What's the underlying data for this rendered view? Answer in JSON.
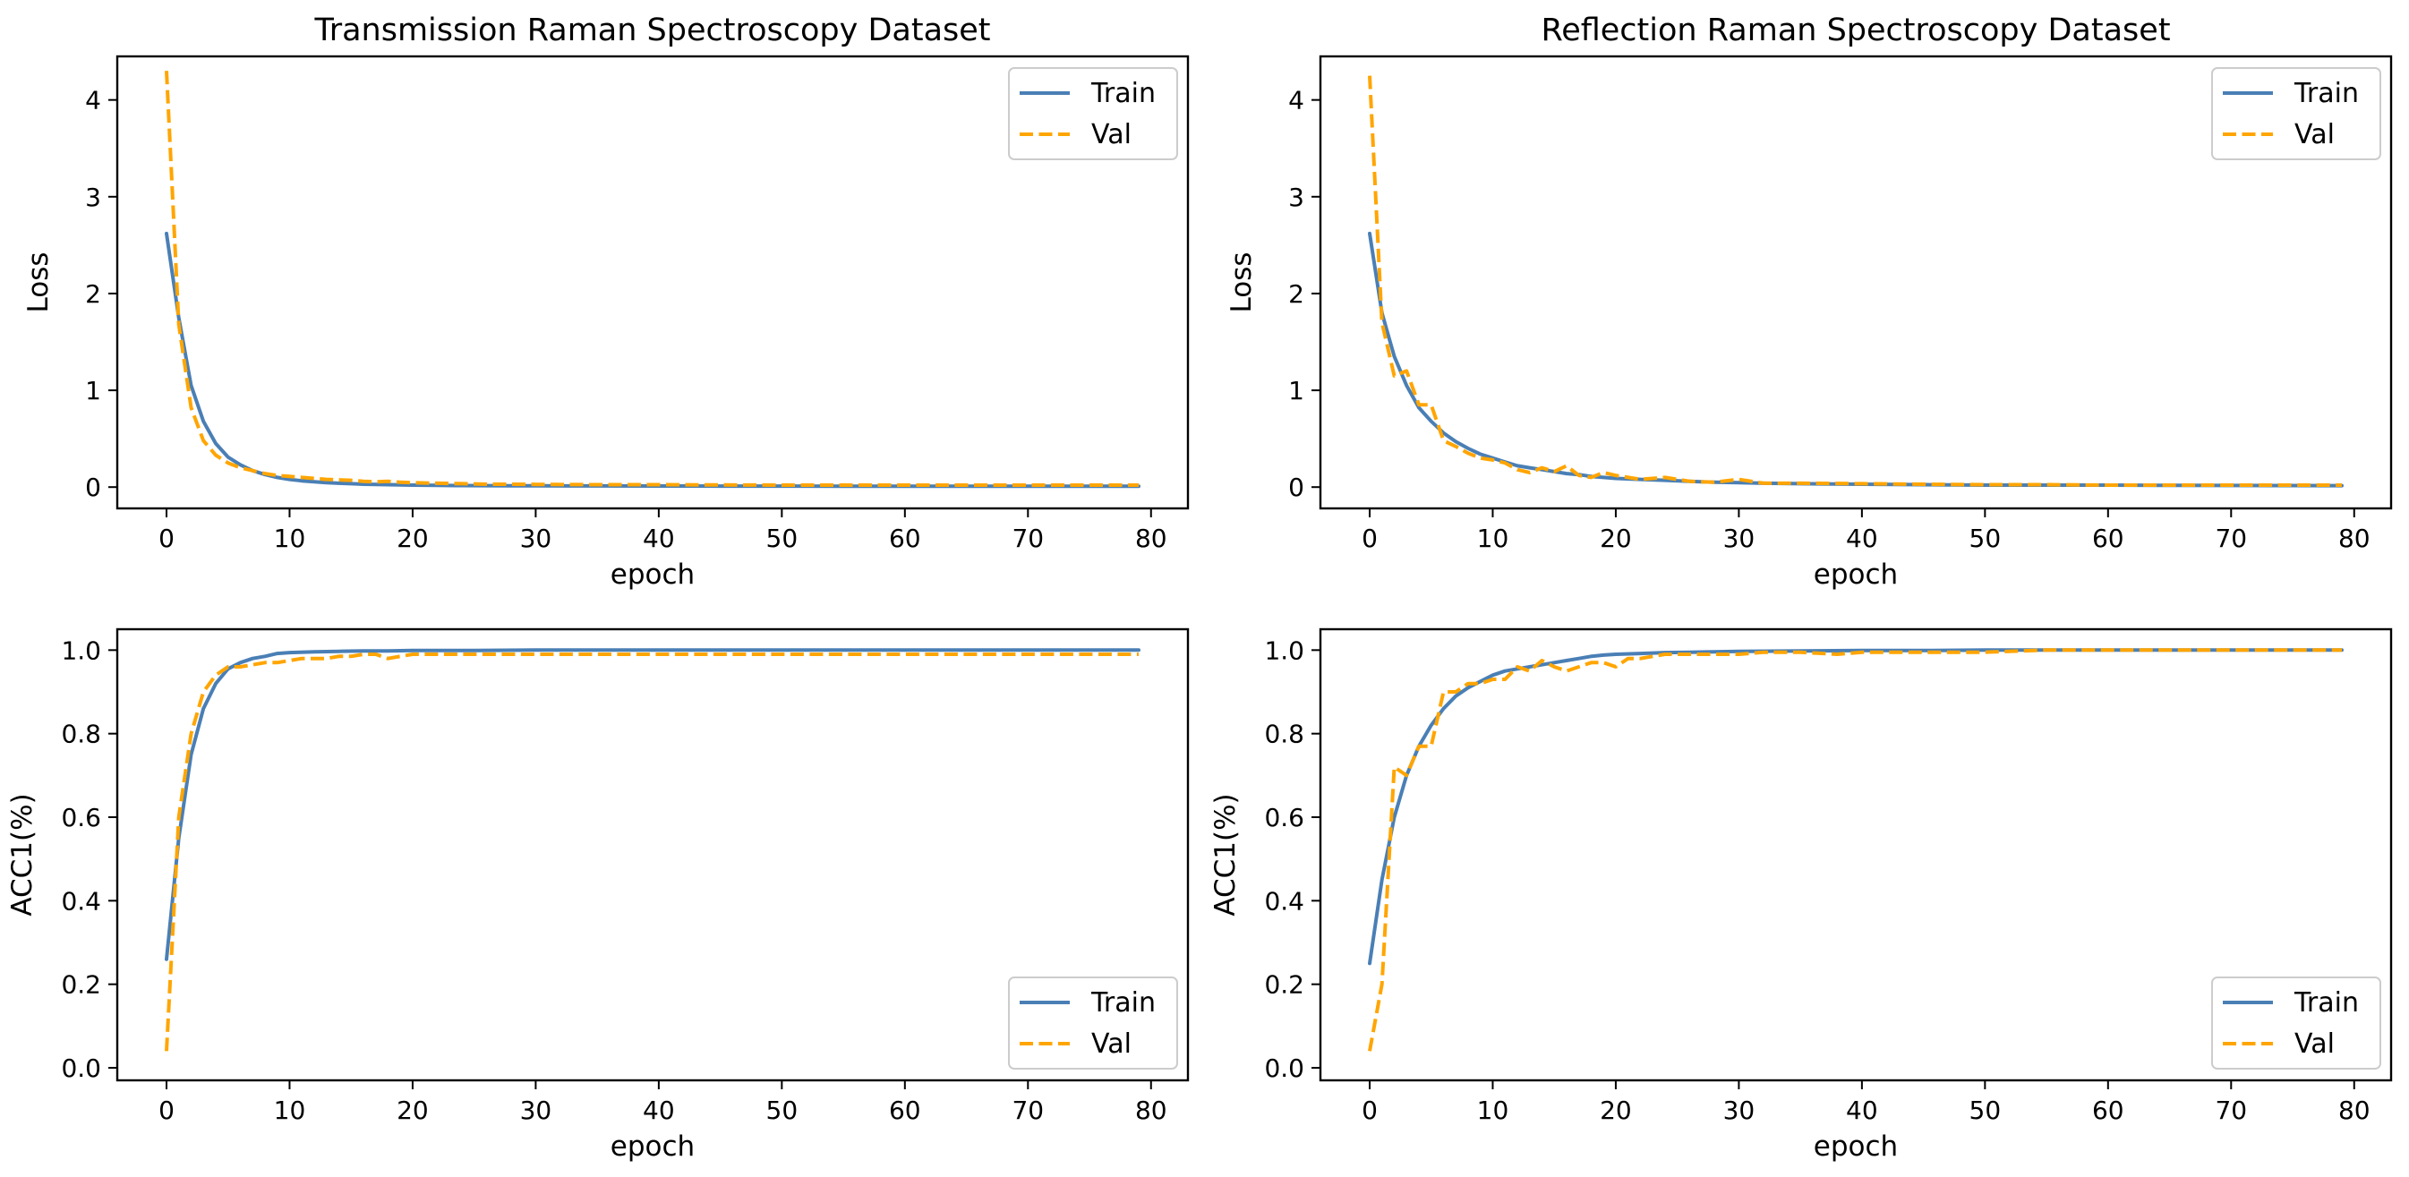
{
  "colors": {
    "train": "#4a7fb5",
    "val": "#ffa500",
    "frame": "#000000",
    "legend_edge": "#cccccc"
  },
  "chart_data": [
    {
      "type": "line",
      "title": "Transmission Raman Spectroscopy Dataset",
      "xlabel": "epoch",
      "ylabel": "Loss",
      "xlim": [
        -4,
        83
      ],
      "ylim": [
        -0.22,
        4.45
      ],
      "xticks": [
        0,
        10,
        20,
        30,
        40,
        50,
        60,
        70,
        80
      ],
      "xtick_labels": [
        "0",
        "10",
        "20",
        "30",
        "40",
        "50",
        "60",
        "70",
        "80"
      ],
      "yticks": [
        0,
        1,
        2,
        3,
        4
      ],
      "ytick_labels": [
        "0",
        "1",
        "2",
        "3",
        "4"
      ],
      "legend": {
        "position": "upper-right",
        "entries": [
          "Train",
          "Val"
        ]
      },
      "series": [
        {
          "name": "Train",
          "style": "solid",
          "color": "train",
          "x": [
            0,
            1,
            2,
            3,
            4,
            5,
            6,
            7,
            8,
            9,
            10,
            11,
            12,
            13,
            14,
            15,
            16,
            17,
            18,
            19,
            20,
            22,
            24,
            26,
            28,
            30,
            35,
            40,
            45,
            50,
            55,
            60,
            65,
            70,
            75,
            79
          ],
          "y": [
            2.62,
            1.75,
            1.05,
            0.68,
            0.45,
            0.31,
            0.23,
            0.17,
            0.13,
            0.1,
            0.08,
            0.065,
            0.055,
            0.045,
            0.04,
            0.035,
            0.03,
            0.027,
            0.025,
            0.022,
            0.02,
            0.018,
            0.016,
            0.015,
            0.014,
            0.013,
            0.012,
            0.011,
            0.01,
            0.01,
            0.009,
            0.009,
            0.008,
            0.008,
            0.008,
            0.008
          ]
        },
        {
          "name": "Val",
          "style": "dashed",
          "color": "val",
          "x": [
            0,
            1,
            2,
            3,
            4,
            5,
            6,
            7,
            8,
            9,
            10,
            11,
            12,
            13,
            14,
            15,
            16,
            17,
            18,
            19,
            20,
            22,
            24,
            26,
            28,
            30,
            35,
            40,
            45,
            50,
            55,
            60,
            65,
            70,
            75,
            79
          ],
          "y": [
            4.3,
            1.68,
            0.82,
            0.48,
            0.33,
            0.25,
            0.2,
            0.17,
            0.14,
            0.12,
            0.11,
            0.1,
            0.09,
            0.08,
            0.075,
            0.07,
            0.06,
            0.055,
            0.06,
            0.05,
            0.045,
            0.04,
            0.035,
            0.03,
            0.03,
            0.028,
            0.025,
            0.025,
            0.022,
            0.02,
            0.02,
            0.02,
            0.02,
            0.02,
            0.02,
            0.02
          ]
        }
      ]
    },
    {
      "type": "line",
      "title": "Reflection Raman Spectroscopy Dataset",
      "xlabel": "epoch",
      "ylabel": "Loss",
      "xlim": [
        -4,
        83
      ],
      "ylim": [
        -0.22,
        4.45
      ],
      "xticks": [
        0,
        10,
        20,
        30,
        40,
        50,
        60,
        70,
        80
      ],
      "xtick_labels": [
        "0",
        "10",
        "20",
        "30",
        "40",
        "50",
        "60",
        "70",
        "80"
      ],
      "yticks": [
        0,
        1,
        2,
        3,
        4
      ],
      "ytick_labels": [
        "0",
        "1",
        "2",
        "3",
        "4"
      ],
      "legend": {
        "position": "upper-right",
        "entries": [
          "Train",
          "Val"
        ]
      },
      "series": [
        {
          "name": "Train",
          "style": "solid",
          "color": "train",
          "x": [
            0,
            1,
            2,
            3,
            4,
            5,
            6,
            7,
            8,
            9,
            10,
            11,
            12,
            13,
            14,
            15,
            16,
            17,
            18,
            19,
            20,
            22,
            24,
            26,
            28,
            30,
            32,
            35,
            40,
            45,
            50,
            55,
            60,
            65,
            70,
            75,
            79
          ],
          "y": [
            2.62,
            1.8,
            1.35,
            1.05,
            0.82,
            0.68,
            0.56,
            0.47,
            0.4,
            0.34,
            0.3,
            0.26,
            0.22,
            0.2,
            0.18,
            0.16,
            0.14,
            0.13,
            0.11,
            0.1,
            0.09,
            0.08,
            0.07,
            0.06,
            0.05,
            0.045,
            0.04,
            0.035,
            0.03,
            0.025,
            0.02,
            0.02,
            0.02,
            0.018,
            0.017,
            0.016,
            0.015
          ]
        },
        {
          "name": "Val",
          "style": "dashed",
          "color": "val",
          "x": [
            0,
            1,
            2,
            3,
            4,
            5,
            6,
            7,
            8,
            9,
            10,
            11,
            12,
            13,
            14,
            15,
            16,
            17,
            18,
            19,
            20,
            22,
            24,
            26,
            28,
            30,
            32,
            35,
            40,
            45,
            50,
            55,
            60,
            65,
            70,
            75,
            79
          ],
          "y": [
            4.25,
            1.7,
            1.15,
            1.2,
            0.85,
            0.85,
            0.48,
            0.42,
            0.35,
            0.3,
            0.28,
            0.25,
            0.18,
            0.15,
            0.2,
            0.16,
            0.22,
            0.12,
            0.1,
            0.15,
            0.12,
            0.08,
            0.1,
            0.06,
            0.05,
            0.08,
            0.04,
            0.04,
            0.035,
            0.03,
            0.025,
            0.025,
            0.02,
            0.02,
            0.02,
            0.02,
            0.02
          ]
        }
      ]
    },
    {
      "type": "line",
      "title": "",
      "xlabel": "epoch",
      "ylabel": "ACC1(%)",
      "xlim": [
        -4,
        83
      ],
      "ylim": [
        -0.03,
        1.05
      ],
      "xticks": [
        0,
        10,
        20,
        30,
        40,
        50,
        60,
        70,
        80
      ],
      "xtick_labels": [
        "0",
        "10",
        "20",
        "30",
        "40",
        "50",
        "60",
        "70",
        "80"
      ],
      "yticks": [
        0,
        0.2,
        0.4,
        0.6,
        0.8,
        1.0
      ],
      "ytick_labels": [
        "0.0",
        "0.2",
        "0.4",
        "0.6",
        "0.8",
        "1.0"
      ],
      "legend": {
        "position": "lower-right",
        "entries": [
          "Train",
          "Val"
        ]
      },
      "series": [
        {
          "name": "Train",
          "style": "solid",
          "color": "train",
          "x": [
            0,
            1,
            2,
            3,
            4,
            5,
            6,
            7,
            8,
            9,
            10,
            12,
            14,
            16,
            18,
            20,
            25,
            30,
            40,
            50,
            60,
            70,
            79
          ],
          "y": [
            0.26,
            0.55,
            0.75,
            0.86,
            0.92,
            0.955,
            0.97,
            0.98,
            0.985,
            0.992,
            0.994,
            0.996,
            0.997,
            0.998,
            0.998,
            0.999,
            0.999,
            1.0,
            1.0,
            1.0,
            1.0,
            1.0,
            1.0
          ]
        },
        {
          "name": "Val",
          "style": "dashed",
          "color": "val",
          "x": [
            0,
            1,
            2,
            3,
            4,
            5,
            6,
            7,
            8,
            9,
            10,
            11,
            12,
            13,
            14,
            15,
            16,
            17,
            18,
            19,
            20,
            22,
            24,
            26,
            28,
            30,
            35,
            40,
            50,
            60,
            70,
            79
          ],
          "y": [
            0.04,
            0.6,
            0.8,
            0.9,
            0.94,
            0.96,
            0.96,
            0.965,
            0.97,
            0.97,
            0.975,
            0.98,
            0.98,
            0.98,
            0.985,
            0.985,
            0.99,
            0.99,
            0.98,
            0.985,
            0.99,
            0.99,
            0.99,
            0.99,
            0.99,
            0.99,
            0.99,
            0.99,
            0.99,
            0.99,
            0.99,
            0.99
          ]
        }
      ]
    },
    {
      "type": "line",
      "title": "",
      "xlabel": "epoch",
      "ylabel": "ACC1(%)",
      "xlim": [
        -4,
        83
      ],
      "ylim": [
        -0.03,
        1.05
      ],
      "xticks": [
        0,
        10,
        20,
        30,
        40,
        50,
        60,
        70,
        80
      ],
      "xtick_labels": [
        "0",
        "10",
        "20",
        "30",
        "40",
        "50",
        "60",
        "70",
        "80"
      ],
      "yticks": [
        0,
        0.2,
        0.4,
        0.6,
        0.8,
        1.0
      ],
      "ytick_labels": [
        "0.0",
        "0.2",
        "0.4",
        "0.6",
        "0.8",
        "1.0"
      ],
      "legend": {
        "position": "lower-right",
        "entries": [
          "Train",
          "Val"
        ]
      },
      "series": [
        {
          "name": "Train",
          "style": "solid",
          "color": "train",
          "x": [
            0,
            1,
            2,
            3,
            4,
            5,
            6,
            7,
            8,
            9,
            10,
            11,
            12,
            13,
            14,
            15,
            16,
            17,
            18,
            19,
            20,
            22,
            24,
            26,
            28,
            30,
            35,
            40,
            45,
            50,
            60,
            70,
            79
          ],
          "y": [
            0.25,
            0.45,
            0.6,
            0.7,
            0.77,
            0.82,
            0.86,
            0.89,
            0.91,
            0.925,
            0.94,
            0.95,
            0.955,
            0.96,
            0.965,
            0.97,
            0.975,
            0.98,
            0.985,
            0.988,
            0.99,
            0.992,
            0.994,
            0.995,
            0.996,
            0.997,
            0.998,
            0.999,
            0.999,
            1.0,
            1.0,
            1.0,
            1.0
          ]
        },
        {
          "name": "Val",
          "style": "dashed",
          "color": "val",
          "x": [
            0,
            1,
            2,
            3,
            4,
            5,
            6,
            7,
            8,
            9,
            10,
            11,
            12,
            13,
            14,
            15,
            16,
            17,
            18,
            19,
            20,
            21,
            22,
            24,
            26,
            28,
            30,
            32,
            35,
            38,
            40,
            45,
            50,
            55,
            60,
            70,
            79
          ],
          "y": [
            0.04,
            0.2,
            0.72,
            0.7,
            0.77,
            0.77,
            0.9,
            0.9,
            0.92,
            0.92,
            0.93,
            0.93,
            0.96,
            0.95,
            0.975,
            0.96,
            0.95,
            0.96,
            0.97,
            0.97,
            0.96,
            0.98,
            0.98,
            0.99,
            0.99,
            0.99,
            0.99,
            0.995,
            0.995,
            0.99,
            0.995,
            0.995,
            0.995,
            1.0,
            1.0,
            1.0,
            1.0
          ]
        }
      ]
    }
  ]
}
